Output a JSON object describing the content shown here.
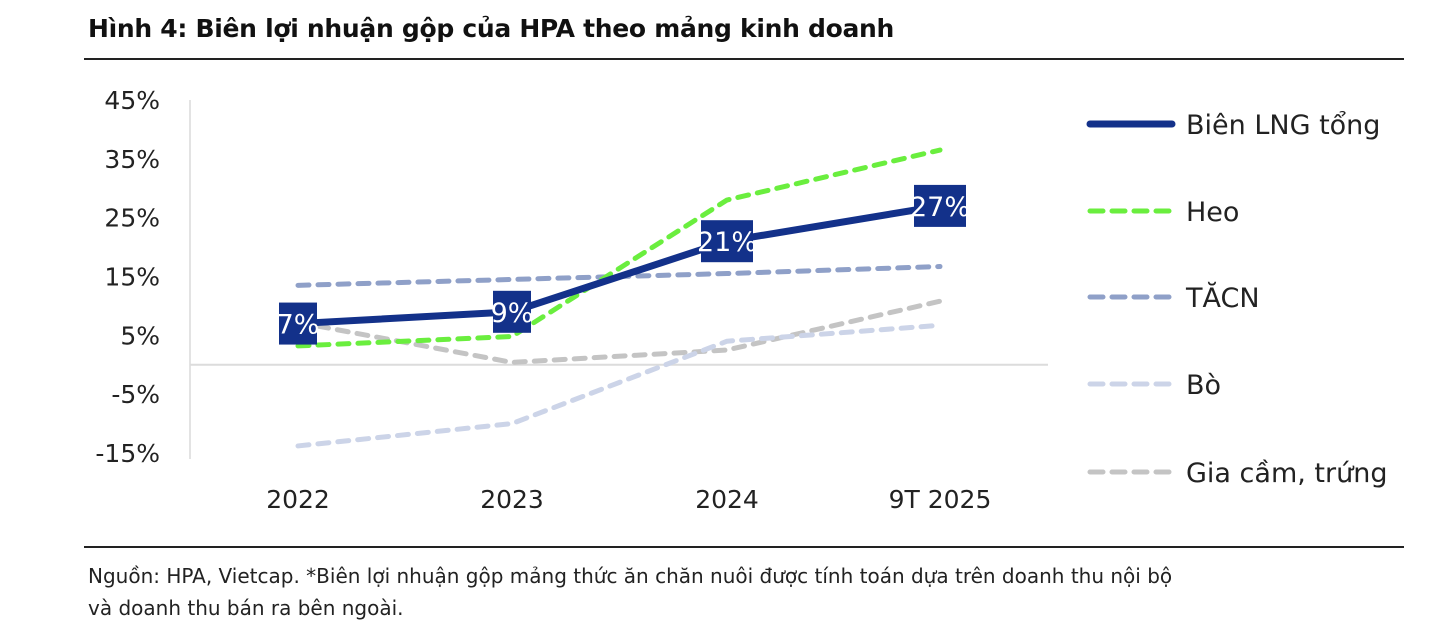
{
  "title": "Hình 4: Biên lợi nhuận gộp của HPA theo mảng kinh doanh",
  "source_line1": "Nguồn: HPA, Vietcap. *Biên lợi nhuận gộp mảng thức ăn chăn nuôi được tính toán dựa trên doanh thu nội bộ",
  "source_line2": "và doanh thu bán ra bên ngoài.",
  "chart_data": {
    "type": "line",
    "title": "Hình 4: Biên lợi nhuận gộp của HPA theo mảng kinh doanh",
    "categories": [
      "2022",
      "2023",
      "2024",
      "9T 2025"
    ],
    "ylim": [
      -15,
      45
    ],
    "yticks": [
      45,
      35,
      25,
      15,
      5,
      -5,
      -15
    ],
    "ytick_labels": [
      "45%",
      "35%",
      "25%",
      "15%",
      "5%",
      "-5%",
      "-15%"
    ],
    "legend_position": "right",
    "series": [
      {
        "name": "Biên LNG tổng",
        "values": [
          7,
          9,
          21,
          27
        ],
        "labels": [
          "7%",
          "9%",
          "21%",
          "27%"
        ],
        "color": "#13318a",
        "dashed": false
      },
      {
        "name": "Heo",
        "values": [
          3.2,
          4.8,
          28,
          36.5
        ],
        "color": "#6aee3e",
        "dashed": true
      },
      {
        "name": "TĂCN",
        "values": [
          13.5,
          14.5,
          15.5,
          16.7
        ],
        "color": "#8fa0c8",
        "dashed": true
      },
      {
        "name": "Bò",
        "values": [
          -13.8,
          -10,
          4,
          6.7
        ],
        "color": "#ccd4e8",
        "dashed": true
      },
      {
        "name": "Gia cầm, trứng",
        "values": [
          7.2,
          0.4,
          2.5,
          10.8
        ],
        "color": "#c4c4c4",
        "dashed": true
      }
    ]
  }
}
